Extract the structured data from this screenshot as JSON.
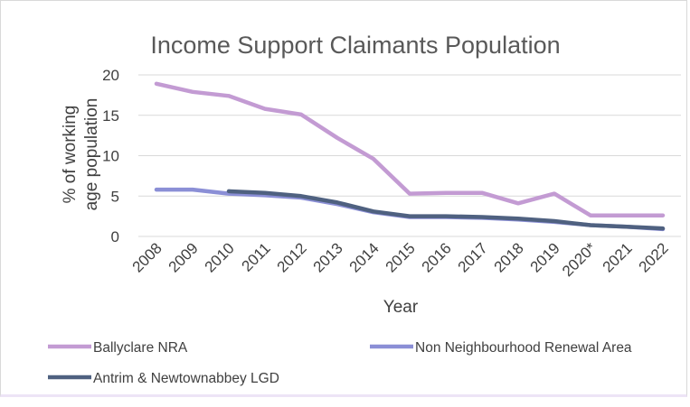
{
  "chart_data": {
    "type": "line",
    "title": "Income Support Claimants Population",
    "xlabel": "Year",
    "ylabel": "% of working age population",
    "ylim": [
      0,
      20
    ],
    "yticks": [
      0,
      5,
      10,
      15,
      20
    ],
    "grid": "horizontal",
    "legend_position": "bottom",
    "categories": [
      "2008",
      "2009",
      "2010",
      "2011",
      "2012",
      "2013",
      "2014",
      "2015",
      "2016",
      "2017",
      "2018",
      "2019",
      "2020*",
      "2021",
      "2022"
    ],
    "series": [
      {
        "name": "Ballyclare NRA",
        "color": "#c39bd3",
        "values": [
          18.9,
          17.9,
          17.4,
          15.8,
          15.1,
          12.2,
          9.6,
          5.3,
          5.4,
          5.4,
          4.1,
          5.3,
          2.6,
          2.6,
          2.6
        ]
      },
      {
        "name": "Non Neighbourhood Renewal Area",
        "color": "#8b8fd6",
        "values": [
          5.8,
          5.8,
          5.3,
          5.1,
          4.8,
          4.0,
          3.0,
          2.4,
          2.4,
          2.3,
          2.1,
          1.8,
          1.4,
          1.2,
          0.9
        ]
      },
      {
        "name": "Antrim & Newtownabbey LGD",
        "color": "#4f6180",
        "values": [
          null,
          null,
          5.6,
          5.4,
          5.0,
          4.2,
          3.1,
          2.5,
          2.5,
          2.4,
          2.2,
          1.9,
          1.4,
          1.2,
          1.0
        ]
      }
    ]
  }
}
